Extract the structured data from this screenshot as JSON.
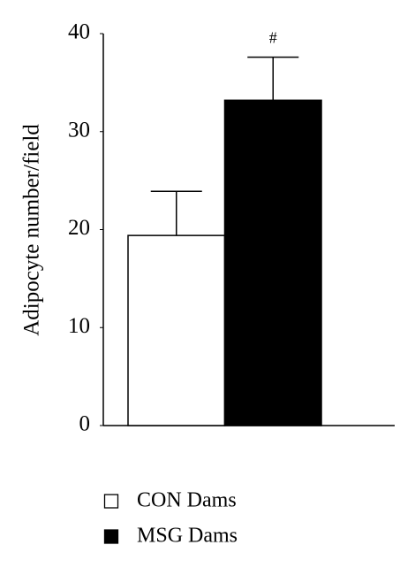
{
  "chart_data": {
    "type": "bar",
    "y_label": "Adipocyte number/field",
    "ylim": [
      0,
      40
    ],
    "yticks": [
      0,
      10,
      20,
      30,
      40
    ],
    "series": [
      {
        "name": "CON Dams",
        "color": "#ffffff",
        "values": [
          19.4
        ],
        "errors": [
          4.5
        ]
      },
      {
        "name": "MSG Dams",
        "color": "#000000",
        "values": [
          33.2
        ],
        "errors": [
          4.4
        ],
        "annotation": "#"
      }
    ]
  }
}
